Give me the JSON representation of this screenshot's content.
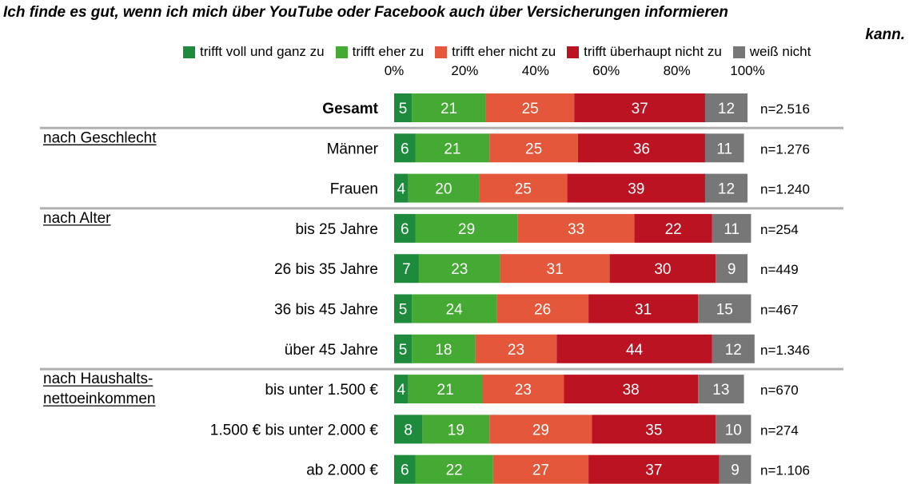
{
  "title_line1": "Ich finde es gut, wenn ich mich über YouTube oder Facebook auch über Versicherungen informieren",
  "title_line2": "kann.",
  "chart_data": {
    "type": "bar",
    "orientation": "horizontal",
    "stacked": true,
    "title": "Ich finde es gut, wenn ich mich über YouTube oder Facebook auch über Versicherungen informieren kann.",
    "xlim": [
      0,
      100
    ],
    "x_ticks": [
      "0%",
      "20%",
      "40%",
      "60%",
      "80%",
      "100%"
    ],
    "x_tick_values": [
      0,
      20,
      40,
      60,
      80,
      100
    ],
    "legend_position": "top",
    "grid": false,
    "series": [
      {
        "name": "trifft voll und ganz zu",
        "color": "#1e8a3c"
      },
      {
        "name": "trifft eher zu",
        "color": "#45aa33"
      },
      {
        "name": "trifft eher nicht zu",
        "color": "#e4573a"
      },
      {
        "name": "trifft überhaupt nicht zu",
        "color": "#bc1322"
      },
      {
        "name": "weiß nicht",
        "color": "#777777"
      }
    ],
    "groups": [
      {
        "label": "",
        "rows": [
          0
        ]
      },
      {
        "label": "nach Geschlecht",
        "rows": [
          1,
          2
        ]
      },
      {
        "label": "nach Alter",
        "rows": [
          3,
          4,
          5,
          6
        ]
      },
      {
        "label": "nach Haushalts-\nnettoeinkommen",
        "rows": [
          7,
          8,
          9
        ]
      }
    ],
    "rows": [
      {
        "label": "Gesamt",
        "bold": true,
        "values": [
          5,
          21,
          25,
          37,
          12
        ],
        "n": "n=2.516"
      },
      {
        "label": "Männer",
        "values": [
          6,
          21,
          25,
          36,
          11
        ],
        "n": "n=1.276"
      },
      {
        "label": "Frauen",
        "values": [
          4,
          20,
          25,
          39,
          12
        ],
        "n": "n=1.240"
      },
      {
        "label": "bis 25 Jahre",
        "values": [
          6,
          29,
          33,
          22,
          11
        ],
        "n": "n=254"
      },
      {
        "label": "26 bis 35 Jahre",
        "values": [
          7,
          23,
          31,
          30,
          9
        ],
        "n": "n=449"
      },
      {
        "label": "36 bis 45 Jahre",
        "values": [
          5,
          24,
          26,
          31,
          15
        ],
        "n": "n=467"
      },
      {
        "label": "über 45 Jahre",
        "values": [
          5,
          18,
          23,
          44,
          12
        ],
        "n": "n=1.346"
      },
      {
        "label": "bis unter 1.500 €",
        "values": [
          4,
          21,
          23,
          38,
          13
        ],
        "n": "n=670"
      },
      {
        "label": "1.500 € bis unter 2.000 €",
        "values": [
          8,
          19,
          29,
          35,
          10
        ],
        "n": "n=274"
      },
      {
        "label": "ab 2.000 €",
        "values": [
          6,
          22,
          27,
          37,
          9
        ],
        "n": "n=1.106"
      }
    ]
  }
}
